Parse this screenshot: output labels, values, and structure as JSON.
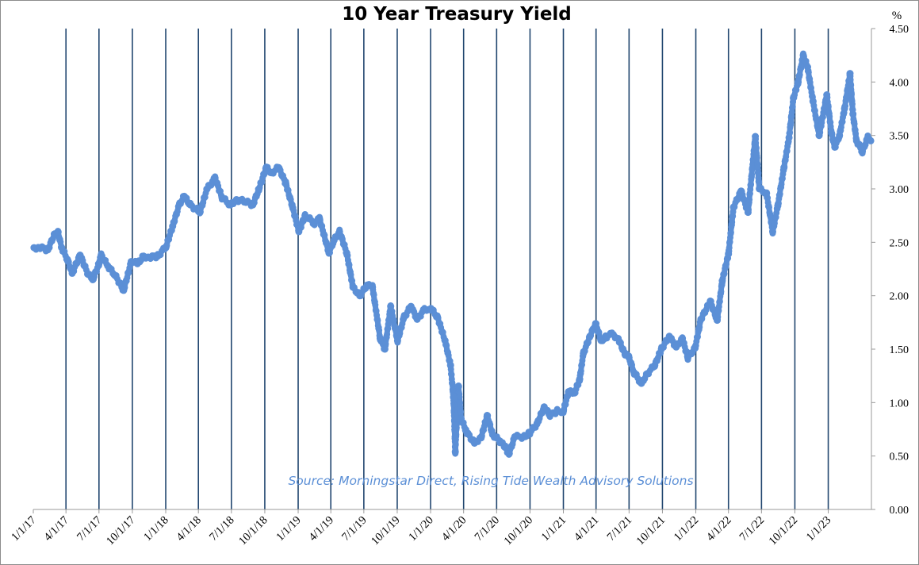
{
  "chart_data": {
    "type": "line",
    "title": "10 Year Treasury Yield",
    "y_unit": "%",
    "source": "Source: Morningstar Direct, Rising Tide Wealth Advisory Solutions",
    "ylim": [
      0,
      4.5
    ],
    "y_ticks": [
      "0.00",
      "0.50",
      "1.00",
      "1.50",
      "2.00",
      "2.50",
      "3.00",
      "3.50",
      "4.00",
      "4.50"
    ],
    "x_ticks": [
      "1/1/17",
      "4/1/17",
      "7/1/17",
      "10/1/17",
      "1/1/18",
      "4/1/18",
      "7/1/18",
      "10/1/18",
      "1/1/19",
      "4/1/19",
      "7/1/19",
      "10/1/19",
      "1/1/20",
      "4/1/20",
      "7/1/20",
      "10/1/20",
      "1/1/21",
      "4/1/21",
      "7/1/21",
      "10/1/21",
      "1/1/22",
      "4/1/22",
      "7/1/22",
      "10/1/22",
      "1/1/23"
    ],
    "xlim": [
      "2017-01-01",
      "2023-04-30"
    ],
    "grid": "vertical",
    "series_color": "#5b8fd6",
    "series": [
      {
        "x": [
          "2017-01-03",
          "2017-01-20",
          "2017-02-10",
          "2017-03-01",
          "2017-03-10",
          "2017-03-20",
          "2017-04-05",
          "2017-04-18",
          "2017-05-10",
          "2017-06-01",
          "2017-06-14",
          "2017-07-01",
          "2017-07-07",
          "2017-07-25",
          "2017-08-15",
          "2017-09-07",
          "2017-09-28",
          "2017-10-15",
          "2017-11-01",
          "2017-11-20",
          "2017-12-10",
          "2018-01-02",
          "2018-01-20",
          "2018-02-08",
          "2018-02-21",
          "2018-03-10",
          "2018-04-05",
          "2018-04-25",
          "2018-05-17",
          "2018-06-05",
          "2018-06-28",
          "2018-07-15",
          "2018-08-10",
          "2018-08-29",
          "2018-09-15",
          "2018-10-05",
          "2018-10-20",
          "2018-11-08",
          "2018-11-28",
          "2018-12-15",
          "2019-01-03",
          "2019-01-20",
          "2019-02-15",
          "2019-03-01",
          "2019-03-27",
          "2019-04-10",
          "2019-04-25",
          "2019-05-15",
          "2019-06-01",
          "2019-06-20",
          "2019-07-10",
          "2019-07-25",
          "2019-08-15",
          "2019-08-28",
          "2019-09-13",
          "2019-10-02",
          "2019-10-20",
          "2019-11-08",
          "2019-11-25",
          "2019-12-15",
          "2020-01-02",
          "2020-01-20",
          "2020-02-10",
          "2020-02-25",
          "2020-03-04",
          "2020-03-09",
          "2020-03-18",
          "2020-03-25",
          "2020-04-10",
          "2020-05-01",
          "2020-05-20",
          "2020-06-05",
          "2020-06-20",
          "2020-07-10",
          "2020-07-25",
          "2020-08-04",
          "2020-08-20",
          "2020-09-15",
          "2020-10-01",
          "2020-10-20",
          "2020-11-09",
          "2020-11-25",
          "2020-12-15",
          "2021-01-01",
          "2021-01-15",
          "2021-02-01",
          "2021-02-15",
          "2021-02-25",
          "2021-03-15",
          "2021-03-31",
          "2021-04-15",
          "2021-05-01",
          "2021-05-15",
          "2021-06-01",
          "2021-06-20",
          "2021-07-01",
          "2021-07-15",
          "2021-08-04",
          "2021-08-20",
          "2021-09-10",
          "2021-09-28",
          "2021-10-20",
          "2021-11-08",
          "2021-11-25",
          "2021-12-10",
          "2021-12-30",
          "2022-01-15",
          "2022-02-10",
          "2022-03-01",
          "2022-03-15",
          "2022-04-01",
          "2022-04-15",
          "2022-05-06",
          "2022-05-25",
          "2022-06-14",
          "2022-06-25",
          "2022-07-15",
          "2022-08-01",
          "2022-08-15",
          "2022-09-01",
          "2022-09-15",
          "2022-09-27",
          "2022-10-10",
          "2022-10-24",
          "2022-11-05",
          "2022-11-20",
          "2022-12-07",
          "2022-12-28",
          "2023-01-10",
          "2023-01-19",
          "2023-02-01",
          "2023-02-15",
          "2023-03-02",
          "2023-03-10",
          "2023-03-20",
          "2023-04-05",
          "2023-04-20",
          "2023-04-28"
        ],
        "y": [
          2.45,
          2.45,
          2.43,
          2.58,
          2.6,
          2.45,
          2.34,
          2.21,
          2.38,
          2.2,
          2.15,
          2.3,
          2.38,
          2.28,
          2.19,
          2.05,
          2.32,
          2.3,
          2.37,
          2.36,
          2.37,
          2.46,
          2.65,
          2.86,
          2.93,
          2.85,
          2.78,
          3.0,
          3.1,
          2.92,
          2.85,
          2.9,
          2.88,
          2.85,
          3.0,
          3.2,
          3.15,
          3.2,
          3.05,
          2.85,
          2.6,
          2.75,
          2.68,
          2.72,
          2.4,
          2.52,
          2.6,
          2.4,
          2.08,
          2.0,
          2.1,
          2.08,
          1.6,
          1.5,
          1.9,
          1.58,
          1.8,
          1.9,
          1.78,
          1.87,
          1.88,
          1.8,
          1.58,
          1.35,
          1.05,
          0.54,
          1.15,
          0.85,
          0.72,
          0.62,
          0.68,
          0.88,
          0.7,
          0.64,
          0.58,
          0.52,
          0.68,
          0.68,
          0.72,
          0.8,
          0.96,
          0.88,
          0.92,
          0.92,
          1.1,
          1.09,
          1.22,
          1.46,
          1.62,
          1.74,
          1.58,
          1.62,
          1.64,
          1.6,
          1.45,
          1.42,
          1.28,
          1.18,
          1.27,
          1.35,
          1.5,
          1.62,
          1.52,
          1.6,
          1.42,
          1.51,
          1.78,
          1.95,
          1.77,
          2.14,
          2.39,
          2.83,
          2.98,
          2.78,
          3.49,
          3.0,
          2.96,
          2.6,
          2.84,
          3.2,
          3.48,
          3.85,
          4.0,
          4.25,
          4.14,
          3.82,
          3.5,
          3.88,
          3.52,
          3.39,
          3.5,
          3.75,
          4.08,
          3.7,
          3.45,
          3.35,
          3.48,
          3.45
        ]
      }
    ]
  }
}
